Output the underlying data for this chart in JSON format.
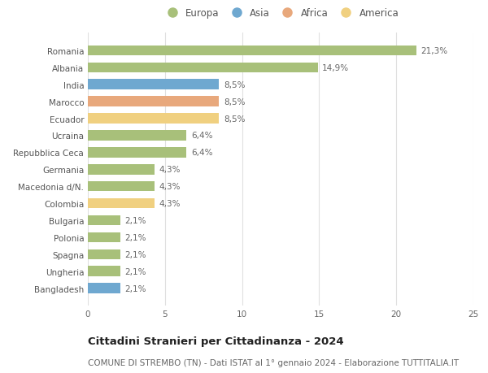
{
  "categories": [
    "Romania",
    "Albania",
    "India",
    "Marocco",
    "Ecuador",
    "Ucraina",
    "Repubblica Ceca",
    "Germania",
    "Macedonia d/N.",
    "Colombia",
    "Bulgaria",
    "Polonia",
    "Spagna",
    "Ungheria",
    "Bangladesh"
  ],
  "values": [
    21.3,
    14.9,
    8.5,
    8.5,
    8.5,
    6.4,
    6.4,
    4.3,
    4.3,
    4.3,
    2.1,
    2.1,
    2.1,
    2.1,
    2.1
  ],
  "labels": [
    "21,3%",
    "14,9%",
    "8,5%",
    "8,5%",
    "8,5%",
    "6,4%",
    "6,4%",
    "4,3%",
    "4,3%",
    "4,3%",
    "2,1%",
    "2,1%",
    "2,1%",
    "2,1%",
    "2,1%"
  ],
  "continents": [
    "Europa",
    "Europa",
    "Asia",
    "Africa",
    "America",
    "Europa",
    "Europa",
    "Europa",
    "Europa",
    "America",
    "Europa",
    "Europa",
    "Europa",
    "Europa",
    "Asia"
  ],
  "colors": {
    "Europa": "#a8c07a",
    "Asia": "#6fa8d0",
    "Africa": "#e8a87c",
    "America": "#f0d080"
  },
  "legend_order": [
    "Europa",
    "Asia",
    "Africa",
    "America"
  ],
  "title": "Cittadini Stranieri per Cittadinanza - 2024",
  "subtitle": "COMUNE DI STREMBO (TN) - Dati ISTAT al 1° gennaio 2024 - Elaborazione TUTTITALIA.IT",
  "xlim": [
    0,
    25
  ],
  "xticks": [
    0,
    5,
    10,
    15,
    20,
    25
  ],
  "background_color": "#ffffff",
  "grid_color": "#e0e0e0",
  "bar_height": 0.6,
  "label_fontsize": 7.5,
  "tick_fontsize": 7.5,
  "title_fontsize": 9.5,
  "subtitle_fontsize": 7.5
}
